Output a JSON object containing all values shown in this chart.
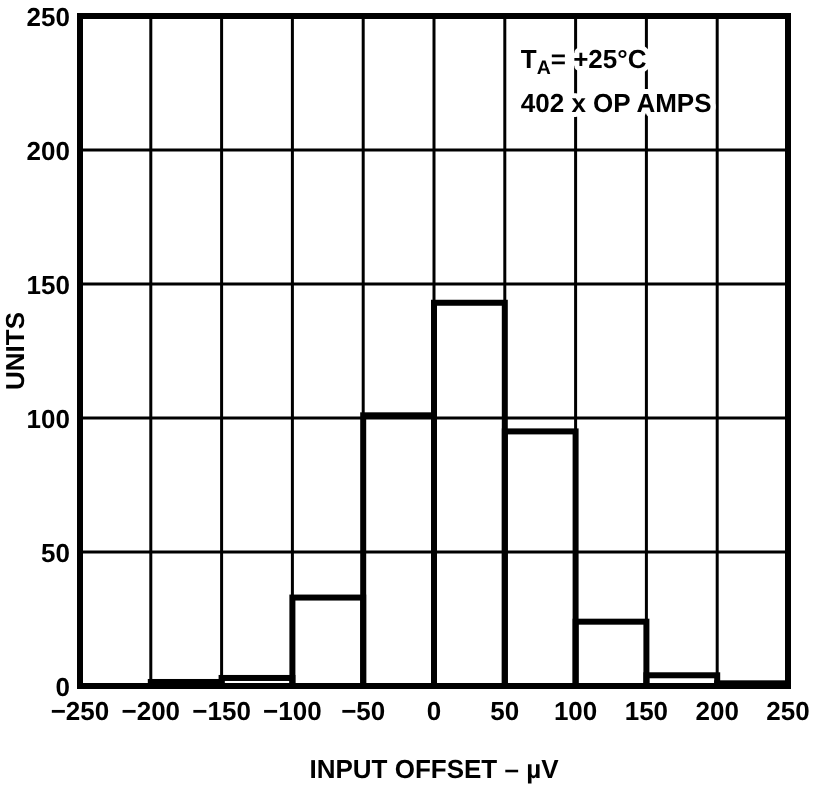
{
  "chart_data": {
    "type": "histogram",
    "xlabel": "INPUT OFFSET – µV",
    "ylabel": "UNITS",
    "bins": [
      -250,
      -200,
      -150,
      -100,
      -50,
      0,
      50,
      100,
      150,
      200,
      250
    ],
    "values": [
      0,
      1.5,
      3,
      33,
      101,
      143,
      95,
      24,
      4,
      1
    ],
    "color": "#000000",
    "xlim": [
      -250,
      250
    ],
    "xticks": [
      -250,
      -200,
      -150,
      -100,
      -50,
      0,
      50,
      100,
      150,
      200,
      250
    ],
    "ylim": [
      0,
      250
    ],
    "yticks": [
      0,
      50,
      100,
      150,
      200,
      250
    ],
    "grid": true,
    "annotations": [
      "T$_{A}$= +25°C",
      "402 x OP AMPS"
    ]
  }
}
